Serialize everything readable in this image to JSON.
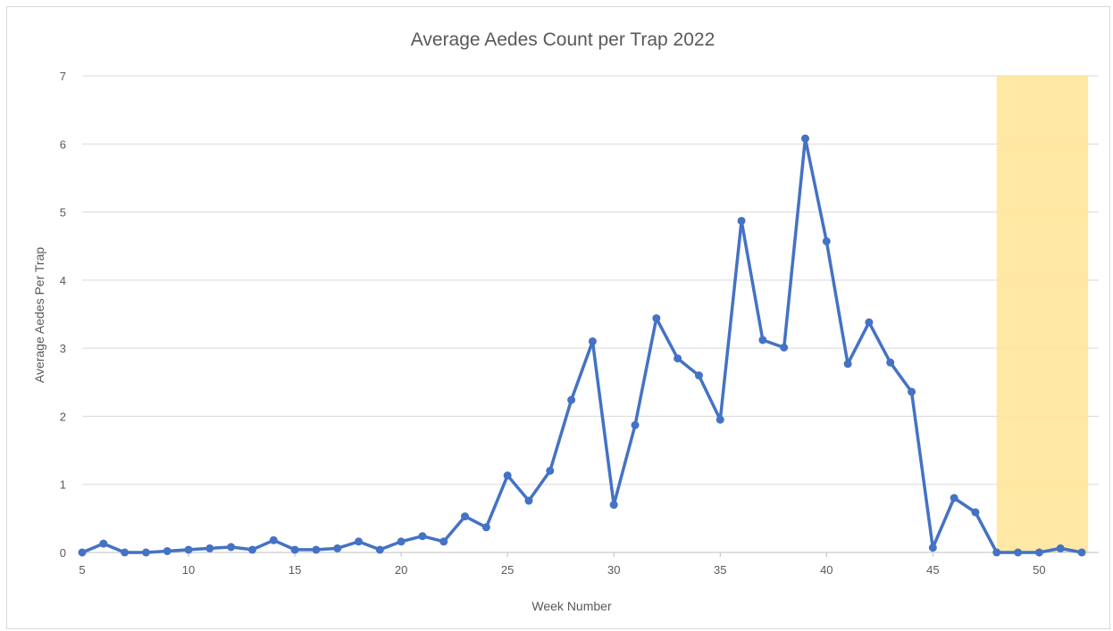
{
  "chart_data": {
    "type": "line",
    "title": "Average Aedes Count per Trap 2022",
    "xlabel": "Week Number",
    "ylabel": "Average Aedes Per Trap",
    "xlim": [
      5,
      52
    ],
    "ylim": [
      0,
      7
    ],
    "x_ticks": [
      "5",
      "10",
      "15",
      "20",
      "25",
      "30",
      "35",
      "40",
      "45",
      "50"
    ],
    "y_ticks": [
      "0",
      "1",
      "2",
      "3",
      "4",
      "5",
      "6",
      "7"
    ],
    "grid": "horizontal",
    "legend": "none",
    "highlight_region": {
      "x_start": 48,
      "x_end": 52.3,
      "color": "#ffe699"
    },
    "series": [
      {
        "color": "#4472c4",
        "x": [
          5,
          6,
          7,
          8,
          9,
          10,
          11,
          12,
          13,
          14,
          15,
          16,
          17,
          18,
          19,
          20,
          21,
          22,
          23,
          24,
          25,
          26,
          27,
          28,
          29,
          30,
          31,
          32,
          33,
          34,
          35,
          36,
          37,
          38,
          39,
          40,
          41,
          42,
          43,
          44,
          45,
          46,
          47,
          48,
          49,
          50,
          51,
          52
        ],
        "y": [
          0,
          0.13,
          0,
          0,
          0.02,
          0.04,
          0.06,
          0.08,
          0.04,
          0.18,
          0.04,
          0.04,
          0.06,
          0.16,
          0.04,
          0.16,
          0.24,
          0.16,
          0.53,
          0.37,
          1.13,
          0.76,
          1.2,
          2.24,
          3.1,
          0.7,
          1.87,
          3.44,
          2.85,
          2.6,
          1.95,
          4.87,
          3.12,
          3.01,
          6.08,
          4.57,
          2.77,
          3.38,
          2.79,
          2.36,
          0.07,
          0.8,
          0.59,
          0,
          0,
          0,
          0.06,
          0
        ]
      }
    ]
  }
}
